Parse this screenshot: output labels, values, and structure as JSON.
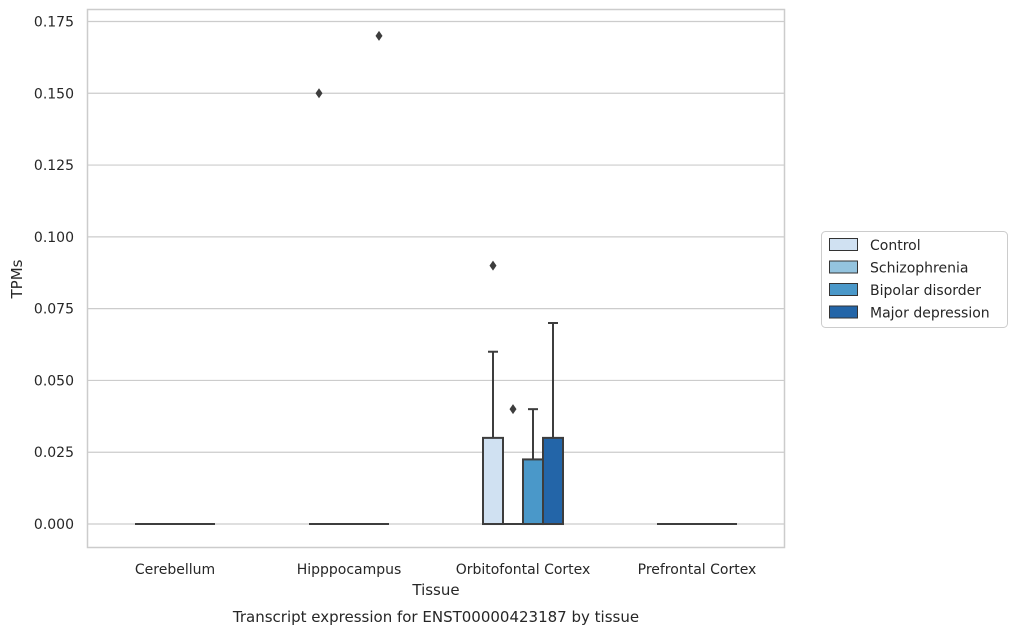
{
  "chart_data": {
    "type": "box",
    "title": "Transcript expression for ENST00000423187 by tissue",
    "xlabel": "Tissue",
    "ylabel": "TPMs",
    "ylim": [
      -0.008,
      0.179
    ],
    "yticks": [
      0.0,
      0.025,
      0.05,
      0.075,
      0.1,
      0.125,
      0.15,
      0.175
    ],
    "ytick_labels": [
      "0.000",
      "0.025",
      "0.050",
      "0.075",
      "0.100",
      "0.125",
      "0.150",
      "0.175"
    ],
    "categories": [
      "Cerebellum",
      "Hipppocampus",
      "Orbitofontal Cortex",
      "Prefrontal Cortex"
    ],
    "grid": true,
    "legend_position": "right",
    "series": [
      {
        "name": "Control",
        "color": "#d0e1f2",
        "boxes": [
          {
            "q1": 0,
            "median": 0,
            "q3": 0,
            "whisker_low": 0,
            "whisker_high": 0,
            "outliers": []
          },
          {
            "q1": 0,
            "median": 0,
            "q3": 0,
            "whisker_low": 0,
            "whisker_high": 0,
            "outliers": [
              0.15
            ]
          },
          {
            "q1": 0,
            "median": 0,
            "q3": 0.03,
            "whisker_low": 0,
            "whisker_high": 0.06,
            "outliers": [
              0.09
            ]
          },
          {
            "q1": 0,
            "median": 0,
            "q3": 0,
            "whisker_low": 0,
            "whisker_high": 0,
            "outliers": []
          }
        ]
      },
      {
        "name": "Schizophrenia",
        "color": "#94c4df",
        "boxes": [
          {
            "q1": 0,
            "median": 0,
            "q3": 0,
            "whisker_low": 0,
            "whisker_high": 0,
            "outliers": []
          },
          {
            "q1": 0,
            "median": 0,
            "q3": 0,
            "whisker_low": 0,
            "whisker_high": 0,
            "outliers": []
          },
          {
            "q1": 0,
            "median": 0,
            "q3": 0,
            "whisker_low": 0,
            "whisker_high": 0,
            "outliers": [
              0.04
            ]
          },
          {
            "q1": 0,
            "median": 0,
            "q3": 0,
            "whisker_low": 0,
            "whisker_high": 0,
            "outliers": []
          }
        ]
      },
      {
        "name": "Bipolar disorder",
        "color": "#4a98c9",
        "boxes": [
          {
            "q1": 0,
            "median": 0,
            "q3": 0,
            "whisker_low": 0,
            "whisker_high": 0,
            "outliers": []
          },
          {
            "q1": 0,
            "median": 0,
            "q3": 0,
            "whisker_low": 0,
            "whisker_high": 0,
            "outliers": []
          },
          {
            "q1": 0,
            "median": 0,
            "q3": 0.0225,
            "whisker_low": 0,
            "whisker_high": 0.04,
            "outliers": []
          },
          {
            "q1": 0,
            "median": 0,
            "q3": 0,
            "whisker_low": 0,
            "whisker_high": 0,
            "outliers": []
          }
        ]
      },
      {
        "name": "Major depression",
        "color": "#2365a8",
        "boxes": [
          {
            "q1": 0,
            "median": 0,
            "q3": 0,
            "whisker_low": 0,
            "whisker_high": 0,
            "outliers": []
          },
          {
            "q1": 0,
            "median": 0,
            "q3": 0,
            "whisker_low": 0,
            "whisker_high": 0,
            "outliers": [
              0.17
            ]
          },
          {
            "q1": 0,
            "median": 0,
            "q3": 0.03,
            "whisker_low": 0,
            "whisker_high": 0.07,
            "outliers": []
          },
          {
            "q1": 0,
            "median": 0,
            "q3": 0,
            "whisker_low": 0,
            "whisker_high": 0,
            "outliers": []
          }
        ]
      }
    ]
  }
}
